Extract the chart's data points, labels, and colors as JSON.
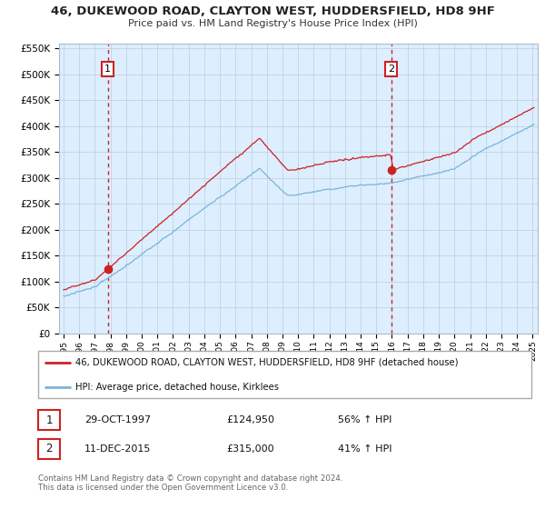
{
  "title": "46, DUKEWOOD ROAD, CLAYTON WEST, HUDDERSFIELD, HD8 9HF",
  "subtitle": "Price paid vs. HM Land Registry's House Price Index (HPI)",
  "ylim": [
    0,
    560000
  ],
  "yticks": [
    0,
    50000,
    100000,
    150000,
    200000,
    250000,
    300000,
    350000,
    400000,
    450000,
    500000,
    550000
  ],
  "ytick_labels": [
    "£0",
    "£50K",
    "£100K",
    "£150K",
    "£200K",
    "£250K",
    "£300K",
    "£350K",
    "£400K",
    "£450K",
    "£500K",
    "£550K"
  ],
  "sale1_date": 1997.83,
  "sale1_price": 124950,
  "sale1_label": "1",
  "sale2_date": 2015.95,
  "sale2_price": 315000,
  "sale2_label": "2",
  "hpi_color": "#7ab4d8",
  "sale_color": "#cc2222",
  "plot_bg_color": "#ddeeff",
  "legend_sale_label": "46, DUKEWOOD ROAD, CLAYTON WEST, HUDDERSFIELD, HD8 9HF (detached house)",
  "legend_hpi_label": "HPI: Average price, detached house, Kirklees",
  "table_row1": [
    "1",
    "29-OCT-1997",
    "£124,950",
    "56% ↑ HPI"
  ],
  "table_row2": [
    "2",
    "11-DEC-2015",
    "£315,000",
    "41% ↑ HPI"
  ],
  "footer": "Contains HM Land Registry data © Crown copyright and database right 2024.\nThis data is licensed under the Open Government Licence v3.0.",
  "background_color": "#ffffff",
  "grid_color": "#bbccdd"
}
